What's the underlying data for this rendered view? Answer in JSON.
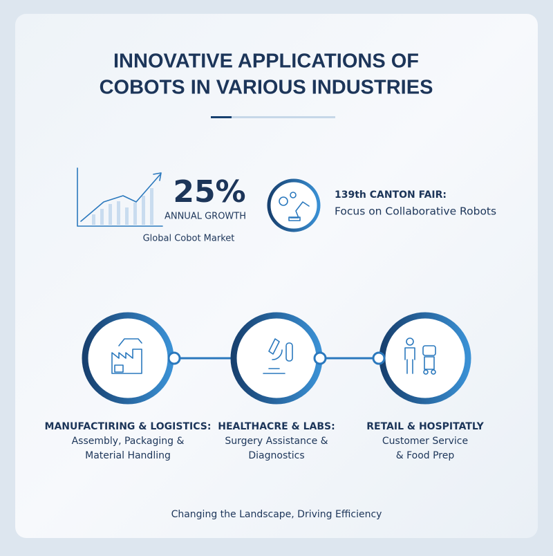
{
  "header": {
    "title_lines": [
      "INNOVATIVE APPLICATIONS OF",
      "COBOTS IN VARIOUS INDUSTRIES"
    ]
  },
  "stat": {
    "value": "25%",
    "label": "ANNUAL GROWTH",
    "caption": "Global Cobot Market"
  },
  "fair": {
    "title": "139th CANTON FAIR:",
    "subtitle": "Focus on Collaborative Robots"
  },
  "industries": [
    {
      "title": "MANUFACTIRING & LOGISTICS:",
      "description_lines": [
        "Assembly, Packaging &",
        "Material Handling"
      ]
    },
    {
      "title": "HEALTHACRE & LABS:",
      "description_lines": [
        "Surgery Assistance &",
        "Diagnostics"
      ]
    },
    {
      "title": "RETAIL & HOSPITATLY",
      "description_lines": [
        "Customer Service",
        "& Food Prep"
      ]
    }
  ],
  "footer": {
    "text": "Changing the Landscape, Driving Efficiency"
  }
}
